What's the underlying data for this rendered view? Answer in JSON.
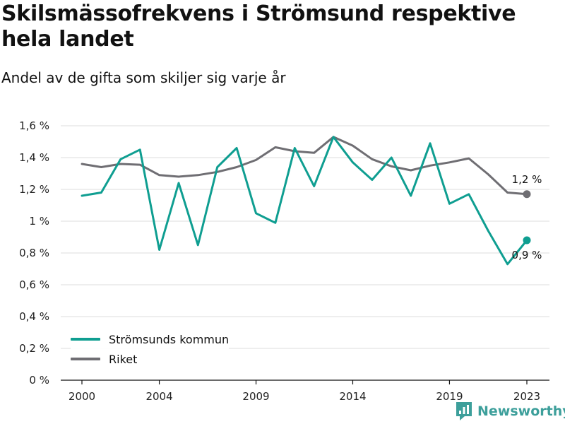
{
  "title": "Skilsmässofrekvens i Strömsund respektive hela landet",
  "subtitle": "Andel av de gifta som skiljer sig varje år",
  "brand": {
    "name": "Newsworthy",
    "icon": "newsworthy-logo-icon",
    "color": "#3d9f9b"
  },
  "chart_data": {
    "type": "line",
    "x": [
      2000,
      2001,
      2002,
      2003,
      2004,
      2005,
      2006,
      2007,
      2008,
      2009,
      2010,
      2011,
      2012,
      2013,
      2014,
      2015,
      2016,
      2017,
      2018,
      2019,
      2020,
      2021,
      2022,
      2023
    ],
    "series": [
      {
        "name": "Strömsunds kommun",
        "color": "#0f9e91",
        "values": [
          1.16,
          1.18,
          1.39,
          1.45,
          0.82,
          1.24,
          0.85,
          1.34,
          1.46,
          1.05,
          0.99,
          1.46,
          1.22,
          1.53,
          1.37,
          1.26,
          1.4,
          1.16,
          1.49,
          1.11,
          1.17,
          0.94,
          0.73,
          0.88
        ],
        "end_label": "0,9 %"
      },
      {
        "name": "Riket",
        "color": "#6f6e73",
        "values": [
          1.36,
          1.34,
          1.36,
          1.355,
          1.29,
          1.28,
          1.29,
          1.31,
          1.34,
          1.385,
          1.465,
          1.44,
          1.43,
          1.53,
          1.475,
          1.39,
          1.345,
          1.32,
          1.35,
          1.37,
          1.395,
          1.295,
          1.18,
          1.17
        ],
        "end_label": "1,2 %"
      }
    ],
    "x_ticks": [
      2000,
      2004,
      2009,
      2014,
      2019,
      2023
    ],
    "x_tick_labels": [
      "2000",
      "2004",
      "2009",
      "2014",
      "2019",
      "2023"
    ],
    "y_ticks": [
      0,
      0.2,
      0.4,
      0.6,
      0.8,
      1.0,
      1.2,
      1.4,
      1.6
    ],
    "y_tick_labels": [
      "0 %",
      "0,2 %",
      "0,4 %",
      "0,6 %",
      "0,8 %",
      "1 %",
      "1,2 %",
      "1,4 %",
      "1,6 %"
    ],
    "ylim": [
      0,
      1.6
    ],
    "xlim": [
      2000,
      2023
    ],
    "grid": true,
    "legend_position": "bottom-left"
  }
}
